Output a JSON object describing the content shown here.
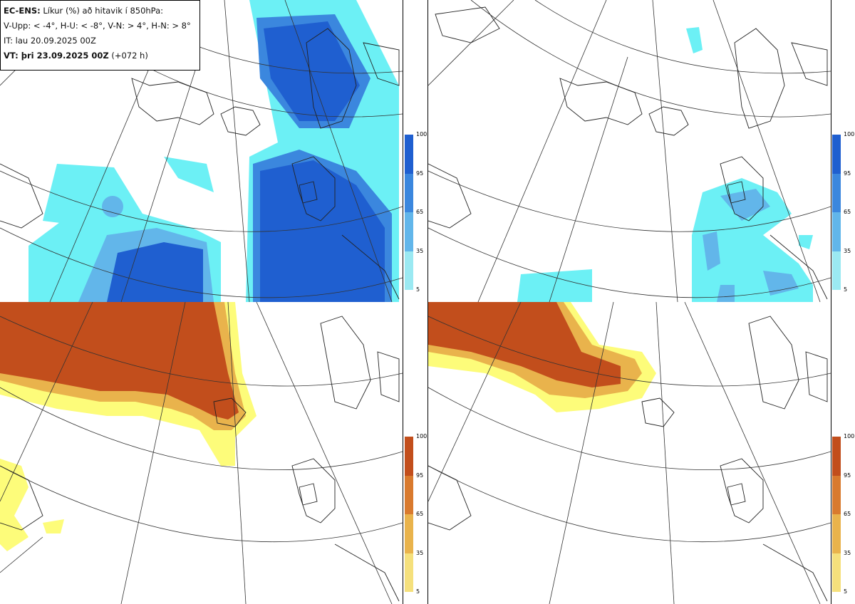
{
  "header": {
    "title_bold": "EC-ENS:",
    "title_rest": "Líkur (%) að hitavik í 850hPa:",
    "line2": "V-Upp: < -4°, H-U: < -8°, V-N: > 4°, H-N: > 8°",
    "line3": "IT: lau 20.09.2025 00Z",
    "line4_bold": "VT: þri 23.09.2025 00Z",
    "line4_rest": "(+072 h)"
  },
  "colorbar": {
    "ticks": [
      "100",
      "95",
      "65",
      "35",
      "5"
    ],
    "blue_scale": [
      "#1f5fd0",
      "#3b87de",
      "#62b6ea",
      "#9be9f2",
      "#6cf0f5"
    ],
    "orange_scale": [
      "#c24e1c",
      "#d97a2e",
      "#e9b34c",
      "#f5e07c",
      "#fdfc7a"
    ]
  },
  "colors": {
    "coast": "#222222",
    "grid": "#333333"
  }
}
